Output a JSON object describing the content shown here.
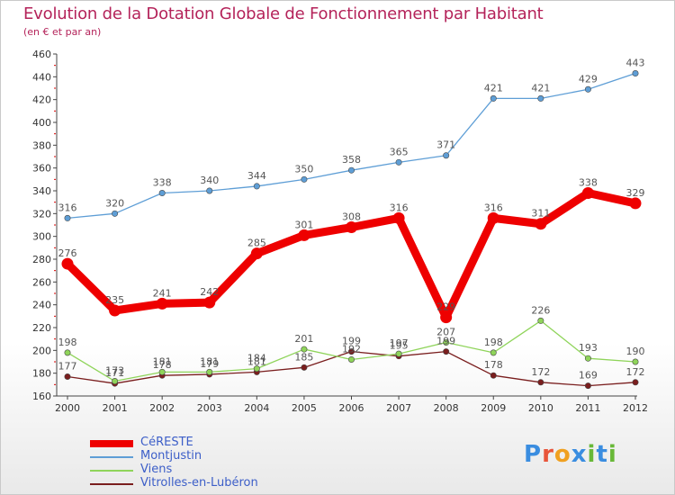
{
  "header": {
    "title": "Evolution de la Dotation Globale de Fonctionnement par Habitant",
    "subtitle": "(en € et par an)"
  },
  "brand": {
    "letters": [
      "P",
      "r",
      "o",
      "x",
      "i",
      "t",
      "i"
    ],
    "colors": [
      "#3a8de0",
      "#e8553a",
      "#f0a020",
      "#3a8de0",
      "#68b838",
      "#3a8de0",
      "#68b838"
    ]
  },
  "chart_data": {
    "type": "line",
    "categories": [
      "2000",
      "2001",
      "2002",
      "2003",
      "2004",
      "2005",
      "2006",
      "2007",
      "2008",
      "2009",
      "2010",
      "2011",
      "2012"
    ],
    "ylim": [
      160,
      460
    ],
    "yticks": [
      160,
      180,
      200,
      220,
      240,
      260,
      280,
      300,
      320,
      340,
      360,
      380,
      400,
      420,
      440,
      460
    ],
    "grid": false,
    "legend_position": "bottom-left",
    "series": [
      {
        "name": "CéRESTE",
        "color": "#ee0000",
        "values": [
          276,
          235,
          241,
          242,
          285,
          301,
          308,
          316,
          229,
          316,
          311,
          338,
          329
        ]
      },
      {
        "name": "Montjustin",
        "color": "#5e9ed6",
        "values": [
          316,
          320,
          338,
          340,
          344,
          350,
          358,
          365,
          371,
          421,
          421,
          429,
          443
        ]
      },
      {
        "name": "Viens",
        "color": "#8fd45a",
        "values": [
          198,
          173,
          181,
          181,
          184,
          201,
          192,
          197,
          207,
          198,
          226,
          193,
          190
        ]
      },
      {
        "name": "Vitrolles-en-Lubéron",
        "color": "#7a1e1e",
        "values": [
          177,
          171,
          178,
          179,
          181,
          185,
          199,
          195,
          199,
          178,
          172,
          169,
          172
        ]
      }
    ]
  }
}
